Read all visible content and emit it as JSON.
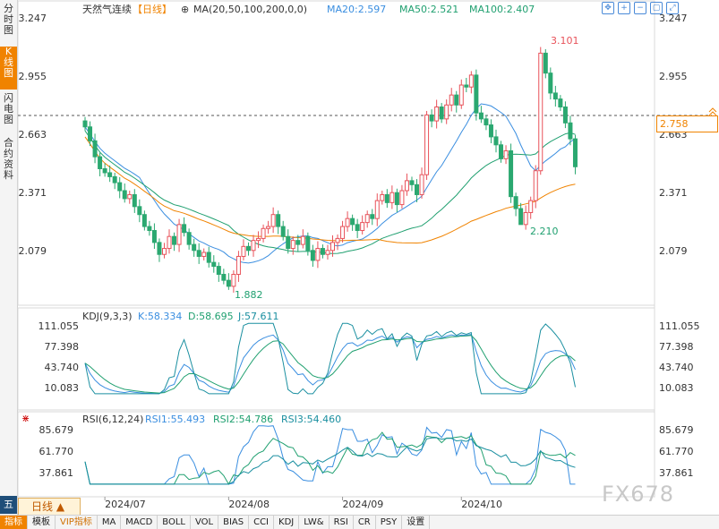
{
  "side_tabs": [
    {
      "label": "分时图"
    },
    {
      "label": "K线图"
    },
    {
      "label": "闪电图"
    },
    {
      "label": "合约资料"
    }
  ],
  "header": {
    "name": "天然气连续",
    "period_tag": "【日线】",
    "ma_params": "MA(20,50,100,200,0,0)",
    "ma20": "MA20:2.597",
    "ma50": "MA50:2.521",
    "ma100": "MA100:2.407"
  },
  "colors": {
    "up": "#e8525a",
    "down": "#2aa870",
    "ma20": "#3a8ee0",
    "ma50": "#20a070",
    "ma100": "#f08300",
    "kdj_k": "#3a8ee0",
    "kdj_d": "#20a070",
    "kdj_j": "#1a8fa0",
    "rsi1": "#3a8ee0",
    "rsi2": "#20a070",
    "rsi3": "#1a8fa0"
  },
  "main_axis": {
    "ticks": [
      "3.247",
      "2.955",
      "2.663",
      "2.371",
      "2.079"
    ]
  },
  "annotations": {
    "high": "3.101",
    "mid_low": "2.210",
    "low": "1.882"
  },
  "last_price": "2.758",
  "kdj": {
    "title": "KDJ(9,3,3)",
    "k": "K:58.334",
    "d": "D:58.695",
    "j": "J:57.611",
    "ticks": [
      "111.055",
      "77.398",
      "43.740",
      "10.083"
    ]
  },
  "rsi": {
    "title": "RSI(6,12,24)",
    "r1": "RSI1:55.493",
    "r2": "RSI2:54.786",
    "r3": "RSI3:54.460",
    "ticks": [
      "85.679",
      "61.770",
      "37.861"
    ]
  },
  "x_labels": [
    "2024/07",
    "2024/08",
    "2024/09",
    "2024/10"
  ],
  "period_button": "日线 ▲",
  "wu_label": "五",
  "watermark": "FX678",
  "bottom_tabs": [
    "指标",
    "模板",
    "VIP指标",
    "MA",
    "MACD",
    "BOLL",
    "VOL",
    "BIAS",
    "CCI",
    "KDJ",
    "LW&",
    "RSI",
    "CR",
    "PSY",
    "设置"
  ],
  "tool_icons": [
    "move-icon",
    "zoom-in-icon",
    "zoom-out-icon",
    "fit-icon",
    "fullscreen-icon"
  ],
  "chart_data": {
    "type": "candlestick",
    "closes": [
      2.7,
      2.63,
      2.55,
      2.49,
      2.47,
      2.45,
      2.42,
      2.38,
      2.34,
      2.36,
      2.3,
      2.26,
      2.2,
      2.18,
      2.12,
      2.06,
      2.09,
      2.15,
      2.11,
      2.21,
      2.17,
      2.11,
      2.08,
      2.05,
      2.07,
      2.02,
      2.0,
      1.96,
      1.93,
      1.9,
      1.96,
      2.05,
      2.1,
      2.08,
      2.13,
      2.14,
      2.19,
      2.2,
      2.26,
      2.2,
      2.15,
      2.09,
      2.13,
      2.11,
      2.15,
      2.08,
      2.03,
      2.09,
      2.06,
      2.08,
      2.12,
      2.14,
      2.2,
      2.24,
      2.21,
      2.18,
      2.22,
      2.26,
      2.24,
      2.33,
      2.36,
      2.32,
      2.37,
      2.31,
      2.38,
      2.43,
      2.41,
      2.36,
      2.46,
      2.76,
      2.73,
      2.8,
      2.74,
      2.81,
      2.86,
      2.81,
      2.91,
      2.9,
      2.96,
      2.77,
      2.74,
      2.71,
      2.65,
      2.61,
      2.54,
      2.58,
      2.35,
      2.29,
      2.21,
      2.27,
      2.33,
      2.48,
      3.07,
      2.97,
      2.87,
      2.84,
      2.8,
      2.72,
      2.64,
      2.5
    ],
    "open_first": 2.73,
    "high": 3.101,
    "low": 1.882,
    "mid_low": 2.21,
    "reference_price": 2.758,
    "ma20_last": 2.597,
    "ma50_last": 2.521,
    "ma100_last": 2.407,
    "kdj_last": {
      "K": 58.334,
      "D": 58.695,
      "J": 57.611
    },
    "rsi_last": {
      "RSI1": 55.493,
      "RSI2": 54.786,
      "RSI3": 54.46
    },
    "kdj_range": [
      10.083,
      111.055
    ],
    "rsi_range": [
      37.861,
      85.679
    ],
    "y_range": [
      2.079,
      3.247
    ],
    "x_labels": [
      "2024/07",
      "2024/08",
      "2024/09",
      "2024/10"
    ]
  }
}
